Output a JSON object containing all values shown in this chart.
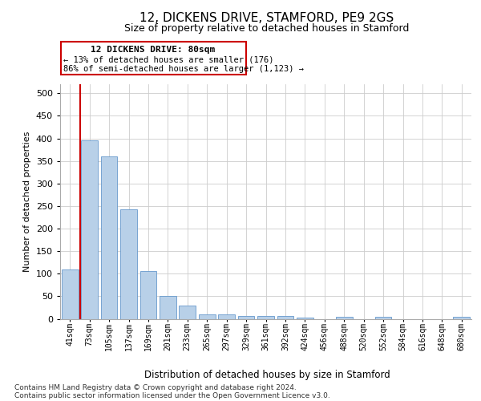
{
  "title1": "12, DICKENS DRIVE, STAMFORD, PE9 2GS",
  "title2": "Size of property relative to detached houses in Stamford",
  "xlabel": "Distribution of detached houses by size in Stamford",
  "ylabel": "Number of detached properties",
  "footnote1": "Contains HM Land Registry data © Crown copyright and database right 2024.",
  "footnote2": "Contains public sector information licensed under the Open Government Licence v3.0.",
  "annotation_title": "12 DICKENS DRIVE: 80sqm",
  "annotation_line2": "← 13% of detached houses are smaller (176)",
  "annotation_line3": "86% of semi-detached houses are larger (1,123) →",
  "bar_color": "#b8d0e8",
  "bar_edge_color": "#6699cc",
  "highlight_color": "#cc0000",
  "background_color": "#ffffff",
  "plot_bg_color": "#ffffff",
  "grid_color": "#cccccc",
  "categories": [
    "41sqm",
    "73sqm",
    "105sqm",
    "137sqm",
    "169sqm",
    "201sqm",
    "233sqm",
    "265sqm",
    "297sqm",
    "329sqm",
    "361sqm",
    "392sqm",
    "424sqm",
    "456sqm",
    "488sqm",
    "520sqm",
    "552sqm",
    "584sqm",
    "616sqm",
    "648sqm",
    "680sqm"
  ],
  "values": [
    110,
    395,
    360,
    243,
    105,
    50,
    30,
    10,
    10,
    6,
    6,
    7,
    3,
    0,
    4,
    0,
    4,
    0,
    0,
    0,
    4
  ],
  "ylim": [
    0,
    520
  ],
  "yticks": [
    0,
    50,
    100,
    150,
    200,
    250,
    300,
    350,
    400,
    450,
    500
  ],
  "property_bin_index": 1,
  "figsize": [
    6.0,
    5.0
  ],
  "dpi": 100
}
